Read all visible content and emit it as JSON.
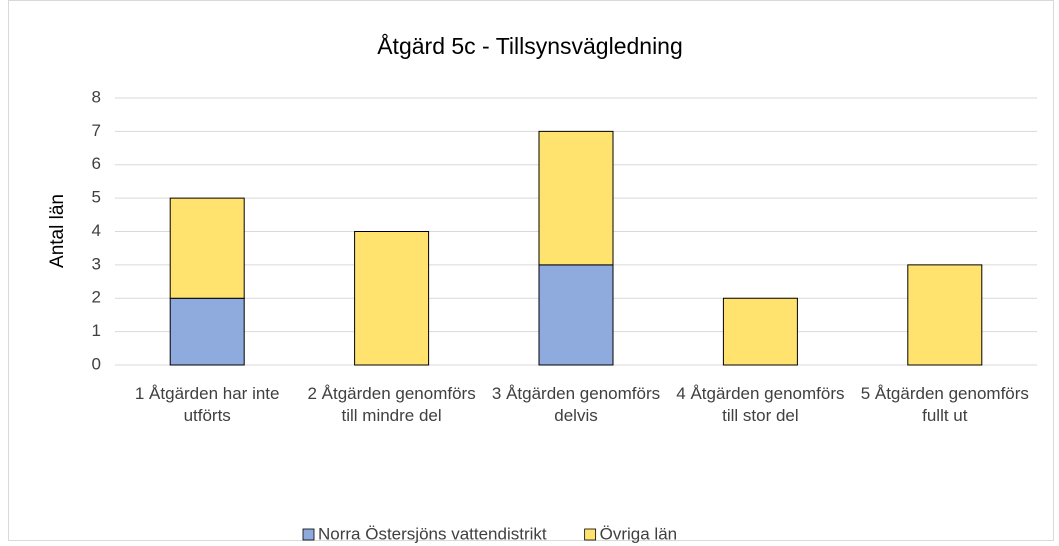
{
  "chart_data": {
    "type": "stacked_bar",
    "title": "Åtgärd 5c  - Tillsynsvägledning",
    "y_label": "Antal län",
    "categories": [
      "1 Åtgärden har inte utförts",
      "2 Åtgärden genomförs till mindre del",
      "3 Åtgärden genomförs delvis",
      "4 Åtgärden genomförs till stor del",
      "5 Åtgärden genomförs fullt ut"
    ],
    "series": [
      {
        "name": "Norra Östersjöns vattendistrikt",
        "color": "#8faadc",
        "values": [
          2,
          0,
          3,
          0,
          0
        ]
      },
      {
        "name": "Övriga län",
        "color": "#ffe36e",
        "values": [
          3,
          4,
          4,
          2,
          3
        ]
      }
    ],
    "ylim": [
      0,
      8
    ],
    "yticks": [
      0,
      1,
      2,
      3,
      4,
      5,
      6,
      7,
      8
    ],
    "grid": true,
    "legend": "bottom"
  }
}
